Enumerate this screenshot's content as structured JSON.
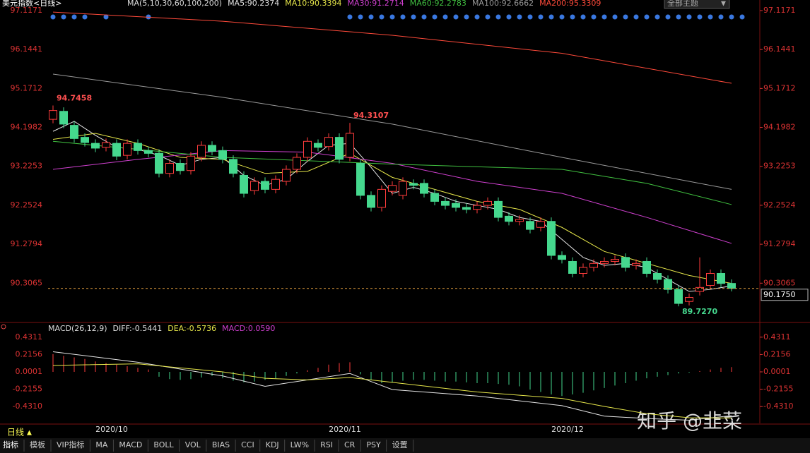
{
  "header": {
    "title": "美元指数<日线>",
    "theme": "全部主题"
  },
  "toolbar": {
    "period": "日线",
    "tabs": [
      "指标",
      "模板",
      "VIP指标",
      "MA",
      "MACD",
      "BOLL",
      "VOL",
      "BIAS",
      "CCI",
      "KDJ",
      "LW%",
      "RSI",
      "CR",
      "PSY",
      "设置"
    ]
  },
  "watermark": "知乎 @韭菜",
  "chart_data": [
    {
      "type": "candlestick",
      "subtitle": "MA(5,10,30,60,100,200)",
      "categories": [
        null,
        null,
        null,
        null,
        null,
        "2020/10",
        null,
        null,
        null,
        null,
        null,
        null,
        null,
        null,
        null,
        null,
        null,
        null,
        null,
        null,
        null,
        null,
        null,
        null,
        null,
        null,
        null,
        "2020/11",
        null,
        null,
        null,
        null,
        null,
        null,
        null,
        null,
        null,
        null,
        null,
        null,
        null,
        null,
        null,
        null,
        null,
        null,
        null,
        null,
        "2020/12",
        null,
        null,
        null,
        null,
        null,
        null,
        null,
        null,
        null,
        null,
        null,
        null,
        null,
        null,
        null,
        null
      ],
      "open": [
        94.4,
        94.6,
        94.25,
        93.95,
        93.8,
        93.7,
        93.8,
        93.5,
        93.8,
        93.62,
        93.55,
        93.05,
        93.3,
        93.12,
        93.45,
        93.75,
        93.62,
        93.4,
        93.0,
        92.62,
        92.85,
        92.65,
        92.85,
        93.15,
        93.45,
        93.8,
        93.72,
        93.95,
        93.45,
        93.3,
        92.5,
        92.2,
        92.6,
        92.5,
        92.8,
        92.8,
        92.55,
        92.35,
        92.3,
        92.2,
        92.15,
        92.25,
        92.35,
        91.98,
        91.85,
        91.85,
        91.7,
        91.85,
        91.0,
        90.85,
        90.55,
        90.7,
        90.8,
        90.85,
        90.95,
        90.75,
        90.85,
        90.55,
        90.4,
        90.15,
        89.85,
        90.1,
        90.25,
        90.55,
        90.3
      ],
      "high": [
        94.7458,
        94.7,
        94.35,
        94.05,
        93.9,
        93.92,
        93.9,
        93.9,
        93.9,
        93.72,
        93.65,
        93.4,
        93.4,
        93.58,
        93.85,
        93.85,
        93.72,
        93.5,
        93.1,
        92.95,
        92.95,
        93.0,
        93.25,
        93.55,
        93.95,
        93.9,
        94.05,
        94.05,
        94.3107,
        93.4,
        92.6,
        92.75,
        92.85,
        92.95,
        92.9,
        92.9,
        92.65,
        92.45,
        92.4,
        92.3,
        92.35,
        92.45,
        92.45,
        92.08,
        92.0,
        91.95,
        91.95,
        91.95,
        91.1,
        90.95,
        90.8,
        90.9,
        90.95,
        91.0,
        91.05,
        90.9,
        90.95,
        90.65,
        90.5,
        90.25,
        90.05,
        90.95,
        90.65,
        90.65,
        90.4
      ],
      "low": [
        94.3,
        94.18,
        93.82,
        93.72,
        93.58,
        93.6,
        93.38,
        93.4,
        93.52,
        93.45,
        92.95,
        92.95,
        93.02,
        93.02,
        93.35,
        93.5,
        93.3,
        92.95,
        92.45,
        92.52,
        92.55,
        92.55,
        92.75,
        93.05,
        93.35,
        93.6,
        93.62,
        93.3,
        93.35,
        92.4,
        92.1,
        92.1,
        92.5,
        92.4,
        92.65,
        92.45,
        92.25,
        92.15,
        92.1,
        92.05,
        92.05,
        92.15,
        91.85,
        91.75,
        91.75,
        91.55,
        91.6,
        90.9,
        90.8,
        90.45,
        90.45,
        90.6,
        90.7,
        90.75,
        90.6,
        90.65,
        90.45,
        90.3,
        90.05,
        89.727,
        89.75,
        90.0,
        90.15,
        90.2,
        90.1
      ],
      "close": [
        94.62,
        94.28,
        93.92,
        93.82,
        93.68,
        93.82,
        93.48,
        93.8,
        93.62,
        93.55,
        93.05,
        93.3,
        93.12,
        93.48,
        93.75,
        93.6,
        93.4,
        93.05,
        92.55,
        92.85,
        92.65,
        92.9,
        93.15,
        93.45,
        93.85,
        93.7,
        93.95,
        93.4,
        94.05,
        92.5,
        92.2,
        92.65,
        92.75,
        92.85,
        92.75,
        92.55,
        92.35,
        92.25,
        92.2,
        92.15,
        92.25,
        92.35,
        91.95,
        91.85,
        91.9,
        91.65,
        91.85,
        91.0,
        90.9,
        90.55,
        90.7,
        90.8,
        90.85,
        90.9,
        90.7,
        90.8,
        90.55,
        90.4,
        90.15,
        89.8,
        89.95,
        90.2,
        90.55,
        90.3,
        90.175
      ],
      "up_color": "#ff3c3c",
      "down_color": "#45d88e",
      "series": [
        {
          "name": "MA5:90.2374",
          "color": "#e4e4e4",
          "x": [
            0,
            2,
            4,
            6,
            8,
            10,
            12,
            14,
            16,
            18,
            20,
            22,
            24,
            26,
            28,
            30,
            32,
            34,
            36,
            38,
            40,
            42,
            44,
            46,
            48,
            50,
            52,
            54,
            56,
            58,
            60,
            62,
            64
          ],
          "values": [
            94.1,
            94.35,
            94.0,
            93.7,
            93.65,
            93.5,
            93.25,
            93.4,
            93.45,
            93.0,
            92.75,
            92.9,
            93.35,
            93.75,
            93.8,
            93.2,
            92.55,
            92.7,
            92.55,
            92.35,
            92.25,
            92.15,
            91.95,
            91.85,
            91.4,
            90.95,
            90.75,
            90.8,
            90.7,
            90.4,
            90.1,
            90.15,
            90.24
          ]
        },
        {
          "name": "MA10:90.3394",
          "color": "#e6e64a",
          "x": [
            0,
            4,
            8,
            12,
            16,
            20,
            24,
            28,
            32,
            36,
            40,
            44,
            48,
            52,
            56,
            60,
            64
          ],
          "values": [
            93.9,
            94.05,
            93.8,
            93.45,
            93.4,
            93.05,
            93.1,
            93.55,
            92.95,
            92.65,
            92.35,
            92.15,
            91.7,
            91.1,
            90.8,
            90.5,
            90.3
          ]
        },
        {
          "name": "MA30:91.2714",
          "color": "#d040d0",
          "x": [
            0,
            8,
            16,
            24,
            32,
            40,
            48,
            56,
            64
          ],
          "values": [
            93.15,
            93.4,
            93.62,
            93.58,
            93.3,
            92.85,
            92.55,
            91.95,
            91.3
          ]
        },
        {
          "name": "MA60:92.2783",
          "color": "#40c040",
          "x": [
            0,
            16,
            32,
            48,
            56,
            64
          ],
          "values": [
            93.85,
            93.45,
            93.28,
            93.15,
            92.8,
            92.27
          ]
        },
        {
          "name": "MA100:92.6662",
          "color": "#9a9a9a",
          "x": [
            0,
            16,
            32,
            48,
            64
          ],
          "values": [
            95.53,
            94.95,
            94.28,
            93.45,
            92.65
          ]
        },
        {
          "name": "MA200:95.3309",
          "color": "#ff4a3a",
          "x": [
            0,
            16,
            32,
            48,
            64
          ],
          "values": [
            97.08,
            96.85,
            96.5,
            96.05,
            95.3
          ]
        }
      ],
      "ylim": [
        89.36,
        97.24
      ],
      "yticks": [
        97.1171,
        96.1441,
        95.1712,
        94.1982,
        93.2253,
        92.2524,
        91.2794,
        90.3065
      ],
      "annotations": [
        {
          "x": 0,
          "value": 94.7458
        },
        {
          "x": 28,
          "value": 94.3107
        },
        {
          "x": 59,
          "value": 89.727,
          "label": "89.7270"
        }
      ],
      "last_price": {
        "value": 90.175,
        "label": "90.1750"
      }
    },
    {
      "type": "macd",
      "title": "MACD(26,12,9)",
      "name": "MACD:0.0590",
      "up_color": "#ff3c3c",
      "down_color": "#45d88e",
      "values": [
        0.22,
        0.2,
        0.18,
        0.16,
        0.13,
        0.11,
        0.09,
        0.07,
        0.05,
        0.03,
        -0.06,
        -0.09,
        -0.1,
        -0.09,
        -0.07,
        -0.05,
        -0.08,
        -0.11,
        -0.13,
        -0.12,
        -0.1,
        -0.08,
        -0.05,
        -0.02,
        0.02,
        0.05,
        0.09,
        0.11,
        0.12,
        -0.03,
        -0.1,
        -0.14,
        -0.13,
        -0.11,
        -0.1,
        -0.1,
        -0.11,
        -0.12,
        -0.12,
        -0.13,
        -0.14,
        -0.14,
        -0.15,
        -0.16,
        -0.18,
        -0.22,
        -0.25,
        -0.28,
        -0.3,
        -0.28,
        -0.26,
        -0.23,
        -0.2,
        -0.17,
        -0.14,
        -0.11,
        -0.08,
        -0.06,
        -0.04,
        -0.02,
        -0.01,
        0.01,
        0.03,
        0.05,
        0.059
      ],
      "series": [
        {
          "name": "DIFF:-0.5441",
          "color": "#e4e4e4",
          "x": [
            0,
            8,
            16,
            20,
            24,
            28,
            32,
            40,
            48,
            52,
            56,
            60,
            64
          ],
          "values": [
            0.25,
            0.12,
            -0.05,
            -0.18,
            -0.1,
            -0.02,
            -0.22,
            -0.3,
            -0.42,
            -0.55,
            -0.58,
            -0.6,
            -0.5441
          ]
        },
        {
          "name": "DEA:-0.5736",
          "color": "#e6e64a",
          "x": [
            0,
            8,
            16,
            20,
            24,
            28,
            32,
            40,
            48,
            52,
            56,
            60,
            64
          ],
          "values": [
            0.08,
            0.1,
            0.0,
            -0.08,
            -0.1,
            -0.07,
            -0.13,
            -0.25,
            -0.33,
            -0.43,
            -0.52,
            -0.57,
            -0.5736
          ]
        }
      ],
      "ylim": [
        -0.64,
        0.5
      ],
      "yticks": [
        0.4311,
        0.2156,
        0.0001,
        {
          "value": -0.2155,
          "label": "-0.2155"
        },
        {
          "value": -0.431,
          "label": "-0.4310"
        }
      ]
    }
  ]
}
